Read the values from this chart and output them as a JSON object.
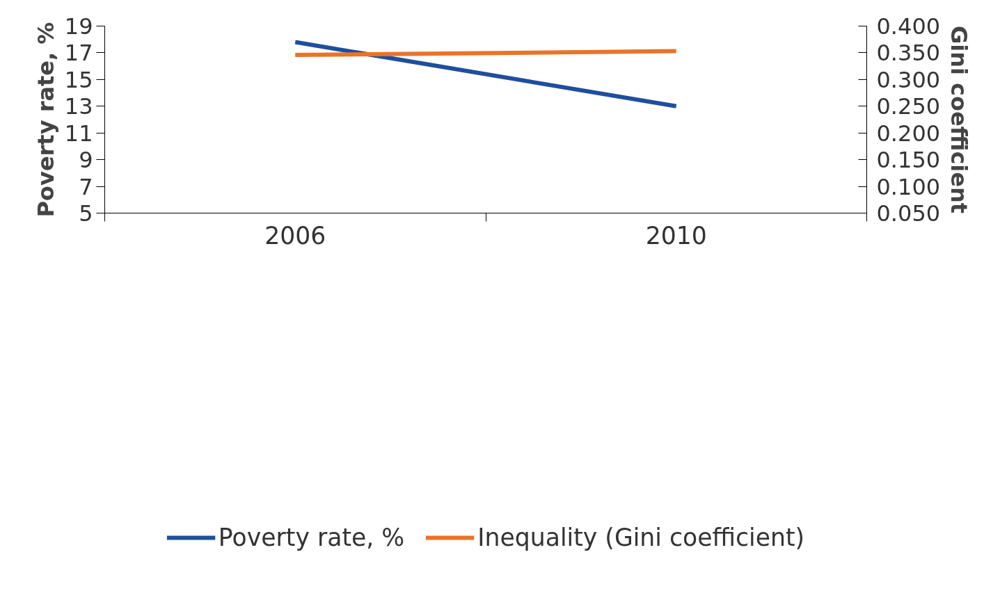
{
  "chart_data": {
    "type": "line",
    "categories": [
      "2006",
      "2010"
    ],
    "ylabel": "Poverty rate, %",
    "y2label": "Gini coefficient",
    "ylim": [
      5,
      19
    ],
    "yticks": [
      5,
      7,
      9,
      11,
      13,
      15,
      17,
      19
    ],
    "y2lim": [
      0.05,
      0.4
    ],
    "y2ticks": [
      {
        "value": 0.05,
        "label": "0.050"
      },
      {
        "value": 0.1,
        "label": "0.100"
      },
      {
        "value": 0.15,
        "label": "0.150"
      },
      {
        "value": 0.2,
        "label": "0.200"
      },
      {
        "value": 0.25,
        "label": "0.250"
      },
      {
        "value": 0.3,
        "label": "0.300"
      },
      {
        "value": 0.35,
        "label": "0.350"
      },
      {
        "value": 0.4,
        "label": "0.400"
      }
    ],
    "series": [
      {
        "name": "Poverty rate, %",
        "color": "#1f4e9c",
        "values": [
          17.8,
          13.0
        ]
      },
      {
        "name": "Inequality (Gini coefficient)",
        "color": "#e8742a",
        "values": [
          0.346,
          0.353
        ],
        "axis": "y2"
      }
    ],
    "grid": false,
    "legend": "bottom",
    "line_style": "solid",
    "marker": "none"
  }
}
